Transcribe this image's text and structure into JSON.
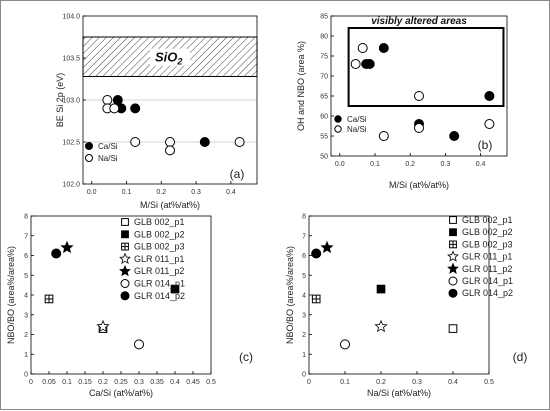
{
  "chart_data": [
    {
      "type": "scatter",
      "panel_label": "(a)",
      "xlabel": "M/Si (at%/at%)",
      "ylabel": "BE Si 2p (eV)",
      "xlim": [
        -0.05,
        0.45
      ],
      "ylim": [
        102.0,
        104.0
      ],
      "xticks": [
        "0.0",
        "0.1",
        "0.2",
        "0.3",
        "0.4"
      ],
      "yticks": [
        "102.0",
        "102.5",
        "103.0",
        "103.5",
        "104.0"
      ],
      "gridlines_y": [
        102.5,
        103.0
      ],
      "band": {
        "label": "SiO",
        "label_sub": "2",
        "y0": 103.28,
        "y1": 103.75
      },
      "legend_position": "bottom-left",
      "series": [
        {
          "name": "Ca/Si",
          "marker": "filled-circle",
          "points": [
            [
              0.05,
              103.0
            ],
            [
              0.06,
              102.9
            ],
            [
              0.1,
              102.9
            ],
            [
              0.3,
              102.5
            ]
          ]
        },
        {
          "name": "Na/Si",
          "marker": "open-circle",
          "points": [
            [
              0.02,
              103.0
            ],
            [
              0.02,
              102.9
            ],
            [
              0.04,
              102.9
            ],
            [
              0.1,
              102.5
            ],
            [
              0.2,
              102.5
            ],
            [
              0.2,
              102.4
            ],
            [
              0.4,
              102.5
            ]
          ]
        }
      ]
    },
    {
      "type": "scatter",
      "panel_label": "(b)",
      "xlabel": "M/Si (at%/at%)",
      "ylabel": "OH and NBO (area %)",
      "xlim": [
        -0.05,
        0.45
      ],
      "ylim": [
        50,
        85
      ],
      "xticks": [
        "0.0",
        "0.1",
        "0.2",
        "0.3",
        "0.4"
      ],
      "yticks": [
        "50",
        "55",
        "60",
        "65",
        "70",
        "75",
        "80",
        "85"
      ],
      "annotation": "visibly altered areas",
      "annotation_box": {
        "x0": 0.0,
        "x1": 0.44,
        "y0": 62.5,
        "y1": 82
      },
      "legend_position": "bottom-left",
      "series": [
        {
          "name": "Ca/Si",
          "marker": "filled-circle",
          "points": [
            [
              0.05,
              73
            ],
            [
              0.06,
              73
            ],
            [
              0.1,
              77
            ],
            [
              0.2,
              58
            ],
            [
              0.3,
              55
            ],
            [
              0.4,
              65
            ]
          ]
        },
        {
          "name": "Na/Si",
          "marker": "open-circle",
          "points": [
            [
              0.02,
              73
            ],
            [
              0.04,
              77
            ],
            [
              0.1,
              55
            ],
            [
              0.2,
              65
            ],
            [
              0.2,
              57
            ],
            [
              0.4,
              58
            ]
          ]
        }
      ]
    },
    {
      "type": "scatter",
      "panel_label": "(c)",
      "xlabel": "Ca/Si (at%/at%)",
      "ylabel": "NBO/BO (area%/area%)",
      "xlim": [
        0,
        0.5
      ],
      "ylim": [
        0,
        8
      ],
      "xticks": [
        "0",
        "0.05",
        "0.1",
        "0.15",
        "0.2",
        "0.25",
        "0.3",
        "0.35",
        "0.4",
        "0.45",
        "0.5"
      ],
      "yticks": [
        "0",
        "1",
        "2",
        "3",
        "4",
        "5",
        "6",
        "7",
        "8"
      ],
      "legend_position": "top-right",
      "series": [
        {
          "name": "GLB 002_p1",
          "marker": "open-square",
          "points": [
            [
              0.2,
              2.3
            ]
          ]
        },
        {
          "name": "GLB 002_p2",
          "marker": "filled-square",
          "points": [
            [
              0.4,
              4.3
            ]
          ]
        },
        {
          "name": "GLB 002_p3",
          "marker": "crossed-square",
          "points": [
            [
              0.05,
              3.8
            ]
          ]
        },
        {
          "name": "GLR 011_p1",
          "marker": "open-star",
          "points": [
            [
              0.2,
              2.4
            ]
          ]
        },
        {
          "name": "GLR 011_p2",
          "marker": "filled-star",
          "points": [
            [
              0.1,
              6.4
            ]
          ]
        },
        {
          "name": "GLR 014_p1",
          "marker": "open-circle",
          "points": [
            [
              0.3,
              1.5
            ]
          ]
        },
        {
          "name": "GLR 014_p2",
          "marker": "filled-circle",
          "points": [
            [
              0.07,
              6.1
            ]
          ]
        }
      ]
    },
    {
      "type": "scatter",
      "panel_label": "(d)",
      "xlabel": "Na/Si (at%/at%)",
      "ylabel": "NBO/BO (area%/area%)",
      "xlim": [
        0,
        0.5
      ],
      "ylim": [
        0,
        8
      ],
      "xticks": [
        "0",
        "0.1",
        "0.2",
        "0.3",
        "0.4",
        "0.5"
      ],
      "yticks": [
        "0",
        "1",
        "2",
        "3",
        "4",
        "5",
        "6",
        "7",
        "8"
      ],
      "legend_position": "right",
      "series": [
        {
          "name": "GLB 002_p1",
          "marker": "open-square",
          "points": [
            [
              0.4,
              2.3
            ]
          ]
        },
        {
          "name": "GLB 002_p2",
          "marker": "filled-square",
          "points": [
            [
              0.2,
              4.3
            ]
          ]
        },
        {
          "name": "GLB 002_p3",
          "marker": "crossed-square",
          "points": [
            [
              0.02,
              3.8
            ]
          ]
        },
        {
          "name": "GLR 011_p1",
          "marker": "open-star",
          "points": [
            [
              0.2,
              2.4
            ]
          ]
        },
        {
          "name": "GLR 011_p2",
          "marker": "filled-star",
          "points": [
            [
              0.05,
              6.4
            ]
          ]
        },
        {
          "name": "GLR 014_p1",
          "marker": "open-circle",
          "points": [
            [
              0.1,
              1.5
            ]
          ]
        },
        {
          "name": "GLR 014_p2",
          "marker": "filled-circle",
          "points": [
            [
              0.02,
              6.1
            ]
          ]
        }
      ]
    }
  ]
}
